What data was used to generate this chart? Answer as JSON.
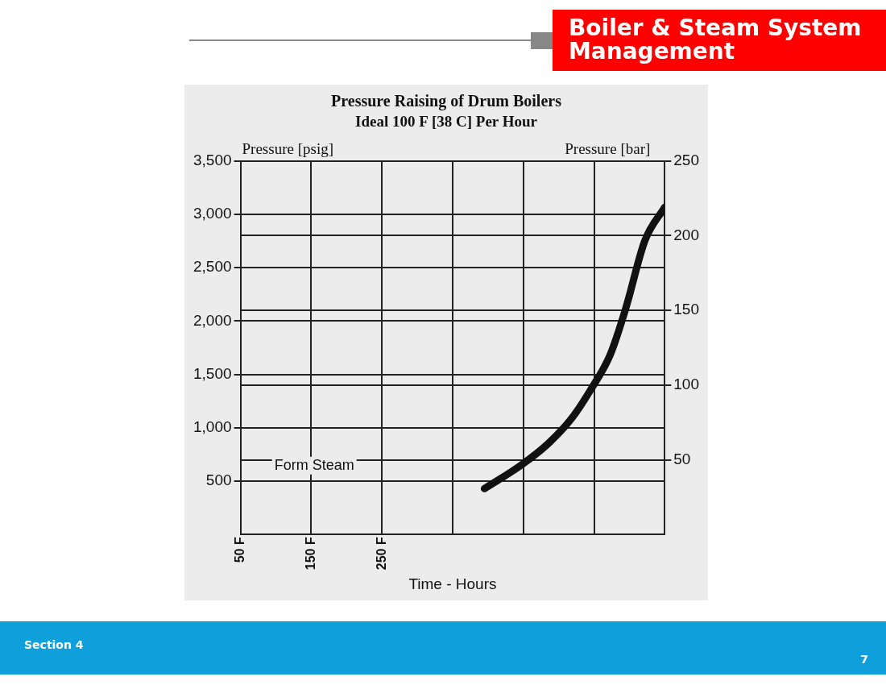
{
  "chart_data": {
    "type": "line",
    "title": "Pressure Raising of Drum Boilers",
    "subtitle": "Ideal 100 F [38 C] Per Hour",
    "xlabel": "Time - Hours",
    "ylabel": "Pressure [psig]",
    "y2label": "Pressure [bar]",
    "annotations": [
      "Boiler & Steam System Management",
      "Section 4",
      "7",
      "Form Steam"
    ],
    "x": [
      395,
      447,
      485,
      518,
      545,
      573,
      595,
      622,
      650
    ],
    "series": [
      {
        "color": "#111111",
        "values": [
          430,
          651,
          851,
          1085,
          1354,
          1686,
          2122,
          2755,
          3068
        ]
      }
    ],
    "xlim": [
      50,
      650
    ],
    "xticks": [
      {
        "value": 50,
        "label": "50 F"
      },
      {
        "value": 150,
        "label": "150 F"
      },
      {
        "value": 250,
        "label": "250 F"
      },
      {
        "value": 350,
        "label": null
      },
      {
        "value": 450,
        "label": null
      },
      {
        "value": 550,
        "label": null
      },
      {
        "value": 650,
        "label": null
      }
    ],
    "ylim": [
      0,
      3500
    ],
    "yticks": [
      {
        "value": 500,
        "label": "500"
      },
      {
        "value": 1000,
        "label": "1,000"
      },
      {
        "value": 1500,
        "label": "1,500"
      },
      {
        "value": 2000,
        "label": "2,000"
      },
      {
        "value": 2500,
        "label": "2,500"
      },
      {
        "value": 3000,
        "label": "3,000"
      },
      {
        "value": 3500,
        "label": "3,500"
      }
    ],
    "y2lim": [
      0,
      250
    ],
    "y2ticks": [
      50,
      100,
      150,
      200,
      250
    ],
    "grid": true,
    "legend": false,
    "marker": "none",
    "line_style": "solid"
  }
}
